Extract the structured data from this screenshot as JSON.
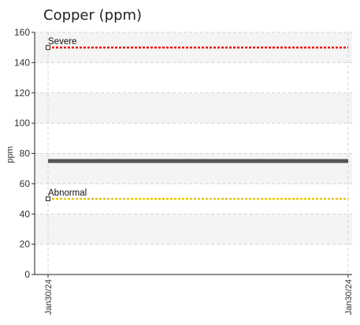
{
  "chart_data": {
    "type": "line",
    "title": "Copper (ppm)",
    "xlabel": "",
    "ylabel": "ppm",
    "x_categories": [
      "Jan30/24",
      "Jan30/24"
    ],
    "ylim": [
      0,
      160
    ],
    "y_ticks": [
      0,
      20,
      40,
      60,
      80,
      100,
      120,
      140,
      160
    ],
    "grid": true,
    "series": [
      {
        "values": [
          75,
          75
        ],
        "color": "#555555"
      }
    ],
    "thresholds": [
      {
        "label": "Severe",
        "value": 150,
        "color": "#ee1111"
      },
      {
        "label": "Abnormal",
        "value": 50,
        "color": "#e8c600"
      }
    ]
  }
}
